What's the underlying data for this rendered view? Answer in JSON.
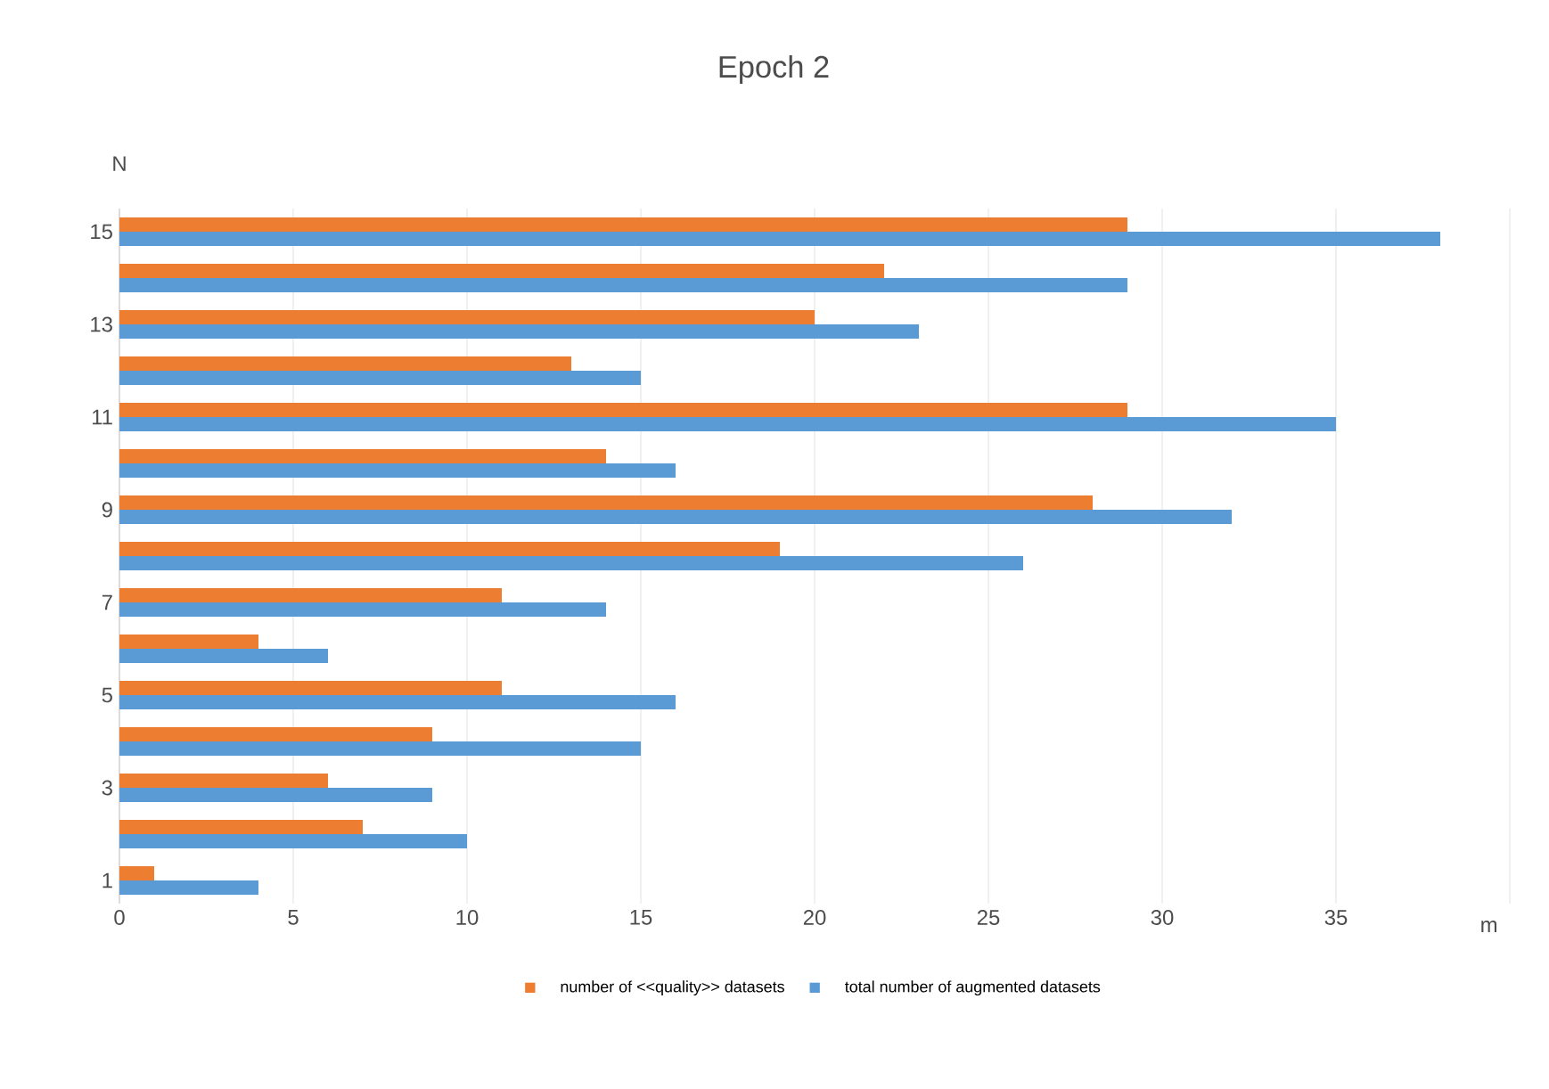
{
  "chart_data": {
    "type": "bar",
    "orientation": "horizontal",
    "title": "Epoch 2",
    "xlabel": "m",
    "ylabel": "N",
    "categories": [
      "15",
      null,
      "13",
      null,
      "11",
      null,
      "9",
      null,
      "7",
      null,
      "5",
      null,
      "3",
      null,
      "1"
    ],
    "series": [
      {
        "name": "number of <<quality>> datasets",
        "color": "#ed7d31",
        "values": [
          29,
          22,
          20,
          13,
          29,
          14,
          28,
          19,
          11,
          4,
          11,
          9,
          6,
          7,
          1
        ]
      },
      {
        "name": "total number of augmented datasets",
        "color": "#5b9bd5",
        "values": [
          38,
          29,
          23,
          15,
          35,
          16,
          32,
          26,
          14,
          6,
          16,
          15,
          9,
          10,
          4
        ]
      }
    ],
    "xlim": [
      0,
      40
    ],
    "xticks": [
      0,
      5,
      10,
      15,
      20,
      25,
      30,
      35,
      {
        "value": 40,
        "label": null
      }
    ],
    "grid": "x",
    "legend": "bottom"
  }
}
